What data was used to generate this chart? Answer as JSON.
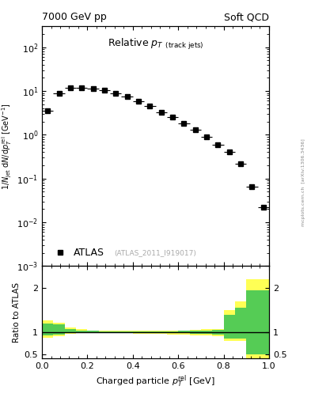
{
  "title_left": "7000 GeV pp",
  "title_right": "Soft QCD",
  "main_title_text": "Relative p",
  "main_title_sub": "T",
  "main_title_suffix": " (track jets)",
  "ylabel_main_line1": "1/N",
  "ylabel_ratio": "Ratio to ATLAS",
  "xlabel": "Charged particle p",
  "watermark": "(ATLAS_2011_I919017)",
  "arxiv_text": "[arXiv:1306.3436]",
  "mcplots_text": "mcplots.cern.ch",
  "data_x": [
    0.025,
    0.075,
    0.125,
    0.175,
    0.225,
    0.275,
    0.325,
    0.375,
    0.425,
    0.475,
    0.525,
    0.575,
    0.625,
    0.675,
    0.725,
    0.775,
    0.825,
    0.875,
    0.925,
    0.975
  ],
  "data_y": [
    3.5,
    9.0,
    12.0,
    12.0,
    11.5,
    10.5,
    9.0,
    7.5,
    5.8,
    4.5,
    3.3,
    2.5,
    1.8,
    1.3,
    0.9,
    0.6,
    0.4,
    0.22,
    0.065,
    0.022
  ],
  "data_xerr": 0.025,
  "ylim_main": [
    0.001,
    300
  ],
  "xlim": [
    0,
    1.0
  ],
  "ylim_ratio": [
    0.4,
    2.5
  ],
  "ratio_yticks": [
    0.5,
    1.0,
    2.0
  ],
  "ratio_ytick_labels": [
    "0.5",
    "1",
    "2"
  ],
  "bg_color": "#ffffff",
  "data_color": "#000000",
  "marker": "s",
  "markersize": 4.5,
  "legend_label": "ATLAS",
  "yellow_color": "#ffff55",
  "green_color": "#55cc55",
  "yellow_band_x": [
    0.0,
    0.05,
    0.1,
    0.15,
    0.2,
    0.25,
    0.3,
    0.35,
    0.4,
    0.45,
    0.5,
    0.55,
    0.6,
    0.65,
    0.7,
    0.75,
    0.8,
    0.85,
    0.9,
    0.95,
    1.0
  ],
  "yellow_band_lo": [
    0.87,
    0.9,
    0.96,
    0.97,
    0.97,
    0.97,
    0.97,
    0.97,
    0.96,
    0.96,
    0.96,
    0.95,
    0.94,
    0.93,
    0.92,
    0.91,
    0.8,
    0.8,
    0.4,
    0.4,
    0.4
  ],
  "yellow_band_hi": [
    1.27,
    1.22,
    1.1,
    1.06,
    1.04,
    1.03,
    1.03,
    1.03,
    1.03,
    1.03,
    1.03,
    1.03,
    1.04,
    1.05,
    1.06,
    1.07,
    1.5,
    1.7,
    2.2,
    2.2,
    2.2
  ],
  "green_band_lo": [
    0.92,
    0.94,
    0.98,
    0.98,
    0.98,
    0.98,
    0.98,
    0.98,
    0.98,
    0.98,
    0.97,
    0.97,
    0.97,
    0.96,
    0.96,
    0.95,
    0.85,
    0.85,
    0.5,
    0.5,
    0.5
  ],
  "green_band_hi": [
    1.2,
    1.17,
    1.07,
    1.04,
    1.03,
    1.02,
    1.02,
    1.02,
    1.02,
    1.02,
    1.02,
    1.02,
    1.03,
    1.03,
    1.04,
    1.05,
    1.4,
    1.55,
    1.95,
    1.95,
    1.95
  ]
}
